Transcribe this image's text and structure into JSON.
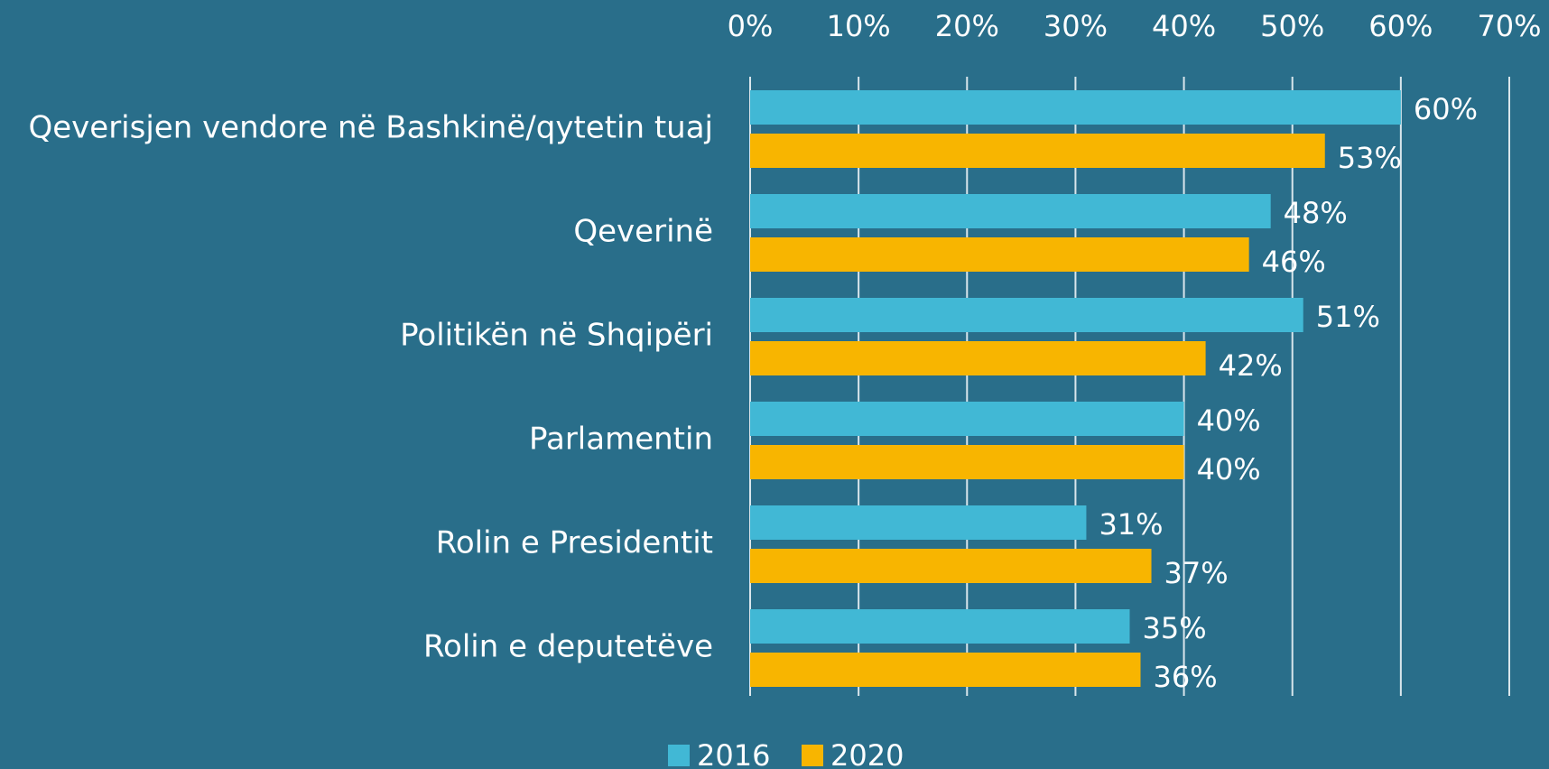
{
  "chart_data": {
    "type": "bar",
    "orientation": "horizontal",
    "categories": [
      "Qeverisjen vendore në Bashkinë/qytetin tuaj",
      "Qeverinë",
      "Politikën në Shqipëri",
      "Parlamentin",
      "Rolin e Presidentit",
      "Rolin e deputetëve"
    ],
    "series": [
      {
        "name": "2016",
        "color": "#41b8d5",
        "values": [
          60,
          48,
          51,
          40,
          31,
          35
        ],
        "value_labels": [
          "60%",
          "48%",
          "51%",
          "40%",
          "31%",
          "35%"
        ]
      },
      {
        "name": "2020",
        "color": "#f8b500",
        "values": [
          53,
          46,
          42,
          40,
          37,
          36
        ],
        "value_labels": [
          "53%",
          "46%",
          "42%",
          "40%",
          "37%",
          "36%"
        ]
      }
    ],
    "xlim": [
      0,
      70
    ],
    "xticks": [
      {
        "value": 0,
        "label": "0%"
      },
      {
        "value": 10,
        "label": "10%"
      },
      {
        "value": 20,
        "label": "20%"
      },
      {
        "value": 30,
        "label": "30%"
      },
      {
        "value": 40,
        "label": "40%"
      },
      {
        "value": 50,
        "label": "50%"
      },
      {
        "value": 60,
        "label": "60%"
      },
      {
        "value": 70,
        "label": "70%"
      }
    ],
    "grid": true,
    "legend": "bottom"
  }
}
